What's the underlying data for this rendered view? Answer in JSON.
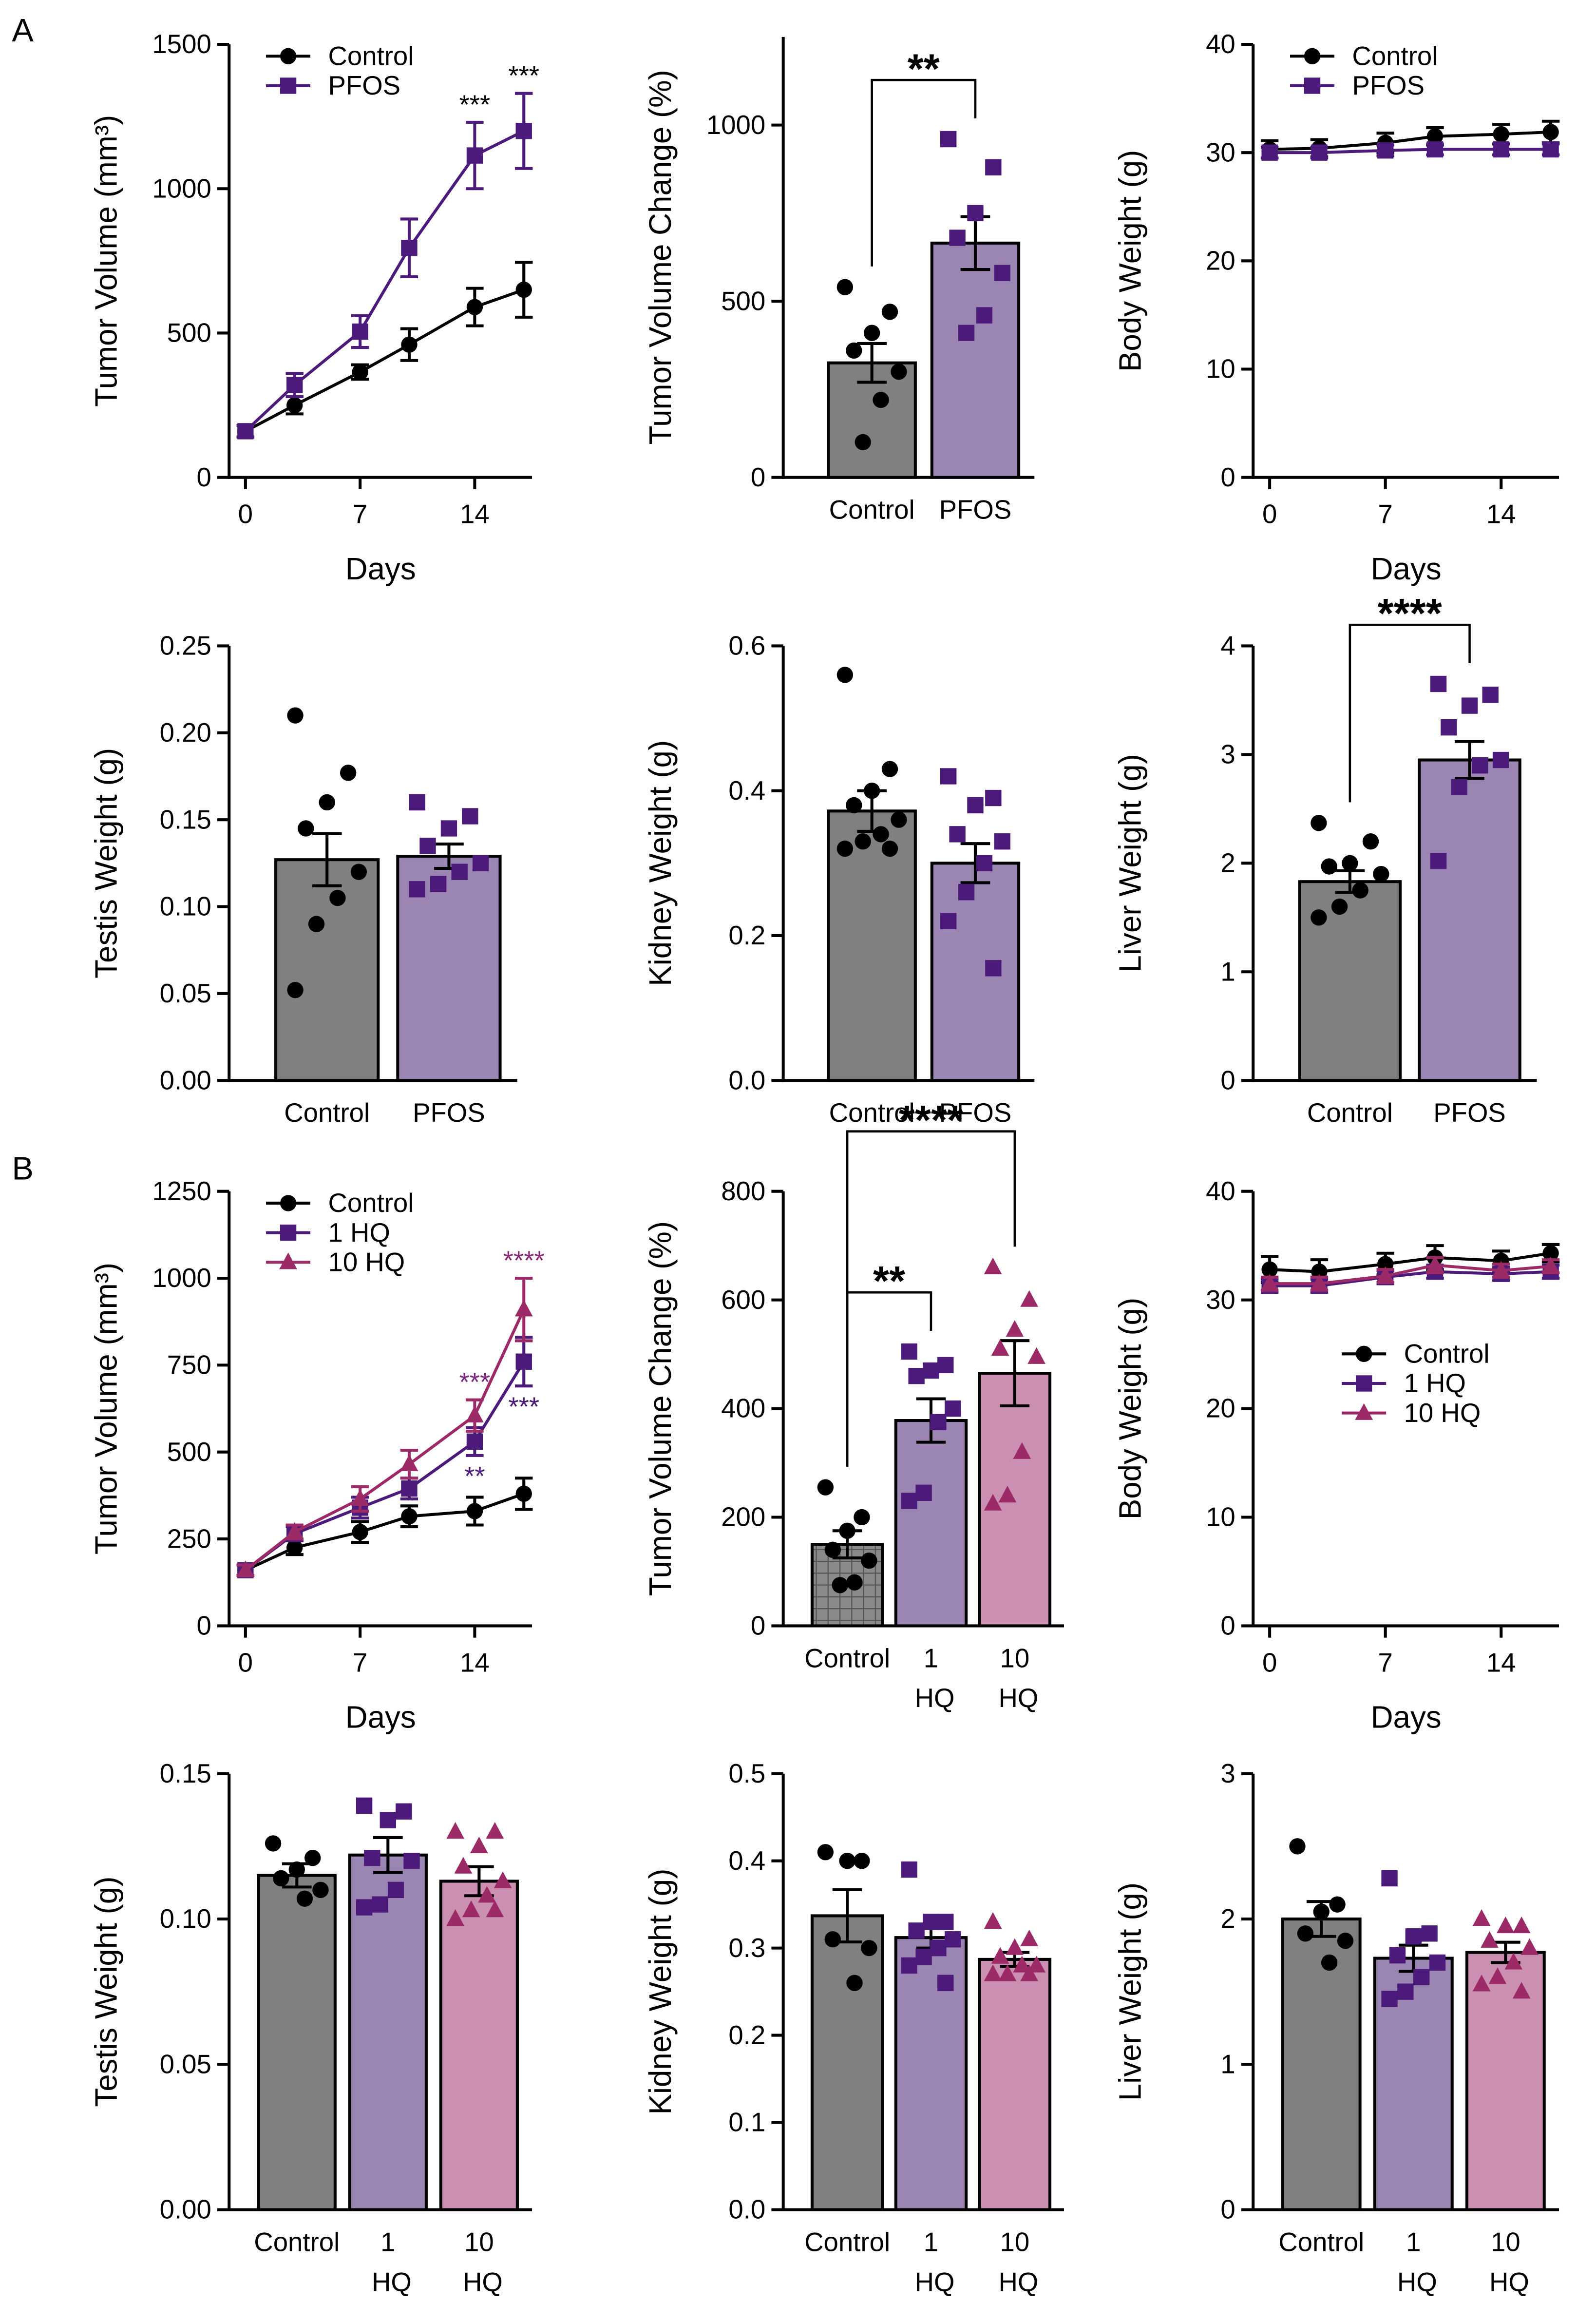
{
  "panels": [
    "A",
    "B"
  ],
  "chart_data": [
    {
      "type": "line",
      "ylabel": "Tumor Volume (mm³)",
      "xlabel": "Days",
      "x": [
        0,
        3,
        7,
        10,
        14,
        17
      ],
      "xlim": [
        -1,
        17.5
      ],
      "xticks": [
        0,
        7,
        14
      ],
      "ylim": [
        0,
        1500
      ],
      "yticks": [
        0,
        500,
        1000,
        1500
      ],
      "legend": "upper left",
      "series": [
        {
          "name": "Control",
          "color": "#000000",
          "marker": "circle",
          "values": [
            160,
            250,
            365,
            460,
            590,
            650
          ],
          "errors": [
            20,
            30,
            25,
            55,
            65,
            95
          ]
        },
        {
          "name": "PFOS",
          "color": "#4b1a7a",
          "marker": "square",
          "values": [
            160,
            320,
            505,
            795,
            1115,
            1200
          ],
          "errors": [
            20,
            40,
            55,
            100,
            115,
            130
          ]
        }
      ],
      "annotations": [
        {
          "text": "***",
          "x": 14,
          "series": "PFOS",
          "side": "above",
          "color": "#000000"
        },
        {
          "text": "***",
          "x": 17,
          "series": "PFOS",
          "side": "above",
          "color": "#000000"
        }
      ]
    },
    {
      "type": "bar",
      "ylabel": "Tumor Volume Change (%)",
      "categories": [
        "Control",
        "PFOS"
      ],
      "values": [
        325,
        665
      ],
      "errors": [
        55,
        75
      ],
      "colors": [
        "#808080",
        "#9b85b3"
      ],
      "point_colors": [
        "#000000",
        "#4b1a7a"
      ],
      "markers": [
        "circle",
        "square"
      ],
      "points": [
        [
          540,
          470,
          410,
          360,
          300,
          220,
          100
        ],
        [
          960,
          880,
          750,
          680,
          580,
          460,
          410
        ]
      ],
      "ylim": [
        0,
        1250
      ],
      "yticks": [
        0,
        500,
        1000
      ],
      "significance": [
        {
          "text": "**",
          "from": "Control",
          "to": "PFOS"
        }
      ]
    },
    {
      "type": "line",
      "ylabel": "Body Weight (g)",
      "xlabel": "Days",
      "x": [
        0,
        3,
        7,
        10,
        14,
        17
      ],
      "xlim": [
        -1,
        17.5
      ],
      "xticks": [
        0,
        7,
        14
      ],
      "ylim": [
        0,
        40
      ],
      "yticks": [
        0,
        10,
        20,
        30,
        40
      ],
      "legend": "upper left",
      "series": [
        {
          "name": "Control",
          "color": "#000000",
          "marker": "circle",
          "values": [
            30.3,
            30.4,
            30.9,
            31.5,
            31.7,
            31.9
          ],
          "errors": [
            0.8,
            0.8,
            0.9,
            0.8,
            0.9,
            1.0
          ]
        },
        {
          "name": "PFOS",
          "color": "#4b1a7a",
          "marker": "square",
          "values": [
            30,
            30,
            30.2,
            30.3,
            30.3,
            30.3
          ],
          "errors": [
            0.5,
            0.5,
            0.5,
            0.5,
            0.5,
            0.5
          ]
        }
      ]
    },
    {
      "type": "bar",
      "ylabel": "Testis Weight (g)",
      "categories": [
        "Control",
        "PFOS"
      ],
      "values": [
        0.127,
        0.129
      ],
      "errors": [
        0.015,
        0.007
      ],
      "colors": [
        "#808080",
        "#9b85b3"
      ],
      "point_colors": [
        "#000000",
        "#4b1a7a"
      ],
      "markers": [
        "circle",
        "square"
      ],
      "points": [
        [
          0.21,
          0.177,
          0.16,
          0.145,
          0.12,
          0.105,
          0.09,
          0.052
        ],
        [
          0.16,
          0.152,
          0.145,
          0.135,
          0.125,
          0.12,
          0.113,
          0.11
        ]
      ],
      "ylim": [
        0,
        0.25
      ],
      "yticks": [
        {
          "value": 0,
          "label": "0.00"
        },
        0.05,
        {
          "value": 0.1,
          "label": "0.10"
        },
        0.15,
        {
          "value": 0.2,
          "label": "0.20"
        },
        0.25
      ]
    },
    {
      "type": "bar",
      "ylabel": "Kidney Weight (g)",
      "categories": [
        "Control",
        "PFOS"
      ],
      "values": [
        0.372,
        0.3
      ],
      "errors": [
        0.028,
        0.027
      ],
      "colors": [
        "#808080",
        "#9b85b3"
      ],
      "point_colors": [
        "#000000",
        "#4b1a7a"
      ],
      "markers": [
        "circle",
        "square"
      ],
      "points": [
        [
          0.56,
          0.43,
          0.4,
          0.38,
          0.36,
          0.34,
          0.33,
          0.32,
          0.32
        ],
        [
          0.42,
          0.39,
          0.38,
          0.34,
          0.33,
          0.3,
          0.26,
          0.22,
          0.155
        ]
      ],
      "ylim": [
        0,
        0.6
      ],
      "yticks": [
        {
          "value": 0,
          "label": "0.0"
        },
        0.2,
        0.4,
        0.6
      ]
    },
    {
      "type": "bar",
      "ylabel": "Liver Weight (g)",
      "categories": [
        "Control",
        "PFOS"
      ],
      "values": [
        1.83,
        2.95
      ],
      "errors": [
        0.1,
        0.17
      ],
      "colors": [
        "#808080",
        "#9b85b3"
      ],
      "point_colors": [
        "#000000",
        "#4b1a7a"
      ],
      "markers": [
        "circle",
        "square"
      ],
      "points": [
        [
          2.37,
          2.2,
          2.0,
          1.97,
          1.9,
          1.75,
          1.6,
          1.5
        ],
        [
          3.65,
          3.55,
          3.45,
          3.25,
          2.95,
          2.9,
          2.7,
          2.02
        ]
      ],
      "ylim": [
        0,
        4
      ],
      "yticks": [
        0,
        1,
        2,
        3,
        4
      ],
      "significance": [
        {
          "text": "****",
          "from": "Control",
          "to": "PFOS"
        }
      ]
    },
    {
      "type": "line",
      "ylabel": "Tumor Volume (mm³)",
      "xlabel": "Days",
      "x": [
        0,
        3,
        7,
        10,
        14,
        17
      ],
      "xlim": [
        -1,
        17.5
      ],
      "xticks": [
        0,
        7,
        14
      ],
      "ylim": [
        0,
        1250
      ],
      "yticks": [
        0,
        250,
        500,
        750,
        1000,
        1250
      ],
      "legend": "upper left",
      "series": [
        {
          "name": "Control",
          "color": "#000000",
          "marker": "circle",
          "values": [
            160,
            225,
            270,
            315,
            330,
            380
          ],
          "errors": [
            15,
            20,
            30,
            30,
            40,
            45
          ]
        },
        {
          "name": "1 HQ",
          "color": "#4b1a7a",
          "marker": "square",
          "values": [
            160,
            265,
            340,
            395,
            530,
            760
          ],
          "errors": [
            15,
            20,
            30,
            30,
            40,
            70
          ]
        },
        {
          "name": "10 HQ",
          "color": "#9c2a66",
          "marker": "triangle",
          "values": [
            160,
            270,
            365,
            465,
            605,
            910
          ],
          "errors": [
            15,
            20,
            35,
            40,
            45,
            90
          ]
        }
      ],
      "annotations": [
        {
          "text": "***",
          "x": 14,
          "series": "10 HQ",
          "side": "above",
          "color": "#7a2a7e"
        },
        {
          "text": "**",
          "x": 14,
          "series": "1 HQ",
          "side": "below",
          "color": "#4b1a7a"
        },
        {
          "text": "****",
          "x": 17,
          "series": "10 HQ",
          "side": "above",
          "color": "#8a2a72"
        },
        {
          "text": "***",
          "x": 17,
          "series": "1 HQ",
          "side": "below",
          "color": "#4b1a7a"
        }
      ]
    },
    {
      "type": "bar",
      "ylabel": "Tumor Volume Change (%)",
      "categories": [
        "Control",
        "1 HQ",
        "10 HQ"
      ],
      "values": [
        150,
        378,
        465
      ],
      "errors": [
        25,
        40,
        60
      ],
      "colors": [
        "#808080",
        "#9b85b3",
        "#cb8fb1"
      ],
      "point_colors": [
        "#000000",
        "#4b1a7a",
        "#9c2a66"
      ],
      "markers": [
        "circle",
        "square",
        "triangle"
      ],
      "hatched_categories": [
        "Control"
      ],
      "points": [
        [
          255,
          200,
          175,
          140,
          120,
          80,
          75
        ],
        [
          505,
          480,
          470,
          460,
          400,
          375,
          245,
          230
        ],
        [
          660,
          600,
          545,
          510,
          495,
          320,
          240,
          225
        ]
      ],
      "ylim": [
        0,
        800
      ],
      "yticks": [
        0,
        200,
        400,
        600,
        800
      ],
      "significance": [
        {
          "text": "**",
          "from": "Control",
          "to": "1 HQ"
        },
        {
          "text": "****",
          "from": "Control",
          "to": "10 HQ"
        }
      ]
    },
    {
      "type": "line",
      "ylabel": "Body Weight (g)",
      "xlabel": "Days",
      "x": [
        0,
        3,
        7,
        10,
        14,
        17
      ],
      "xlim": [
        -1,
        17.5
      ],
      "xticks": [
        0,
        7,
        14
      ],
      "ylim": [
        0,
        40
      ],
      "yticks": [
        0,
        10,
        20,
        30,
        40
      ],
      "legend": "center right",
      "series": [
        {
          "name": "Control",
          "color": "#000000",
          "marker": "circle",
          "values": [
            32.8,
            32.6,
            33.3,
            33.9,
            33.6,
            34.3
          ],
          "errors": [
            1.2,
            1.1,
            1.0,
            1.1,
            0.9,
            0.8
          ]
        },
        {
          "name": "1 HQ",
          "color": "#4b1a7a",
          "marker": "square",
          "values": [
            31.3,
            31.3,
            32.1,
            32.6,
            32.4,
            32.6
          ],
          "errors": [
            0.6,
            0.6,
            0.6,
            0.6,
            0.6,
            0.6
          ]
        },
        {
          "name": "10 HQ",
          "color": "#9c2a66",
          "marker": "triangle",
          "values": [
            31.5,
            31.5,
            32.2,
            33.2,
            32.7,
            33.1
          ],
          "errors": [
            0.6,
            0.6,
            0.6,
            0.7,
            0.6,
            0.6
          ]
        }
      ]
    },
    {
      "type": "bar",
      "ylabel": "Testis Weight (g)",
      "categories": [
        "Control",
        "1 HQ",
        "10 HQ"
      ],
      "values": [
        0.115,
        0.122,
        0.113
      ],
      "errors": [
        0.004,
        0.006,
        0.005
      ],
      "colors": [
        "#808080",
        "#9b85b3",
        "#cb8fb1"
      ],
      "point_colors": [
        "#000000",
        "#4b1a7a",
        "#9c2a66"
      ],
      "markers": [
        "circle",
        "square",
        "triangle"
      ],
      "points": [
        [
          0.126,
          0.121,
          0.117,
          0.114,
          0.11,
          0.107
        ],
        [
          0.139,
          0.137,
          0.134,
          0.121,
          0.12,
          0.11,
          0.105,
          0.104
        ],
        [
          0.13,
          0.13,
          0.125,
          0.118,
          0.113,
          0.108,
          0.103,
          0.1,
          0.103
        ]
      ],
      "ylim": [
        0,
        0.15
      ],
      "yticks": [
        {
          "value": 0,
          "label": "0.00"
        },
        0.05,
        {
          "value": 0.1,
          "label": "0.10"
        },
        0.15
      ]
    },
    {
      "type": "bar",
      "ylabel": "Kidney Weight (g)",
      "categories": [
        "Control",
        "1 HQ",
        "10 HQ"
      ],
      "values": [
        0.337,
        0.312,
        0.287
      ],
      "errors": [
        0.03,
        0.012,
        0.008
      ],
      "colors": [
        "#808080",
        "#9b85b3",
        "#cb8fb1"
      ],
      "point_colors": [
        "#000000",
        "#4b1a7a",
        "#9c2a66"
      ],
      "markers": [
        "circle",
        "square",
        "triangle"
      ],
      "points": [
        [
          0.41,
          0.4,
          0.4,
          0.31,
          0.3,
          0.26
        ],
        [
          0.39,
          0.33,
          0.33,
          0.32,
          0.31,
          0.3,
          0.29,
          0.28,
          0.26
        ],
        [
          0.33,
          0.31,
          0.3,
          0.29,
          0.28,
          0.28,
          0.27,
          0.27,
          0.27
        ]
      ],
      "ylim": [
        0,
        0.5
      ],
      "yticks": [
        {
          "value": 0,
          "label": "0.0"
        },
        0.1,
        0.2,
        0.3,
        0.4,
        0.5
      ]
    },
    {
      "type": "bar",
      "ylabel": "Liver Weight (g)",
      "categories": [
        "Control",
        "1 HQ",
        "10 HQ"
      ],
      "values": [
        2.0,
        1.73,
        1.77
      ],
      "errors": [
        0.12,
        0.09,
        0.07
      ],
      "colors": [
        "#808080",
        "#9b85b3",
        "#cb8fb1"
      ],
      "point_colors": [
        "#000000",
        "#4b1a7a",
        "#9c2a66"
      ],
      "markers": [
        "circle",
        "square",
        "triangle"
      ],
      "points": [
        [
          2.5,
          2.1,
          2.05,
          1.9,
          1.85,
          1.7
        ],
        [
          2.28,
          1.9,
          1.88,
          1.75,
          1.7,
          1.6,
          1.5,
          1.45
        ],
        [
          2.0,
          1.95,
          1.95,
          1.85,
          1.8,
          1.7,
          1.6,
          1.55,
          1.5
        ]
      ],
      "ylim": [
        0,
        3
      ],
      "yticks": [
        0,
        1,
        2,
        3
      ]
    }
  ]
}
